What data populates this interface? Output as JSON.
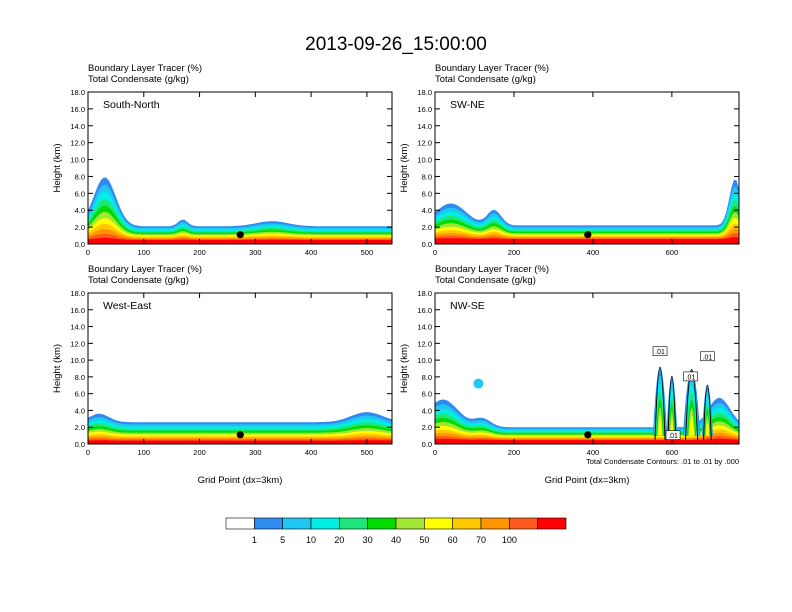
{
  "figure_title": "2013-09-26_15:00:00",
  "colorbar": {
    "labels": [
      "1",
      "5",
      "10",
      "20",
      "30",
      "40",
      "50",
      "60",
      "70",
      "100"
    ],
    "colors": [
      "#ffffff",
      "#2e8cf0",
      "#1ec8f0",
      "#00f0e6",
      "#1ee67a",
      "#00dc00",
      "#a0e632",
      "#ffff00",
      "#ffc800",
      "#ff9600",
      "#ff5a1e",
      "#ff0000"
    ]
  },
  "chart_data": [
    {
      "type": "contour",
      "header_line1": "Boundary Layer Tracer   (%)",
      "header_line2": "Total Condensate   (g/kg)",
      "panel_label": "South-North",
      "xlabel": "",
      "ylabel": "Height (km)",
      "xlim": [
        0,
        545
      ],
      "ylim": [
        0,
        18
      ],
      "xticks": [
        "0",
        "100",
        "200",
        "300",
        "400",
        "500"
      ],
      "yticks": [
        "0.0",
        "2.0",
        "4.0",
        "6.0",
        "8.0",
        "10.0",
        "12.0",
        "14.0",
        "16.0",
        "18.0"
      ],
      "marker": {
        "x": 273,
        "y": 1.1
      },
      "note": "",
      "contour_labels": []
    },
    {
      "type": "contour",
      "header_line1": "Boundary Layer Tracer   (%)",
      "header_line2": "Total Condensate   (g/kg)",
      "panel_label": "SW-NE",
      "xlabel": "",
      "ylabel": "Height (km)",
      "xlim": [
        0,
        770
      ],
      "ylim": [
        0,
        18
      ],
      "xticks": [
        "0",
        "200",
        "400",
        "600"
      ],
      "yticks": [
        "0.0",
        "2.0",
        "4.0",
        "6.0",
        "8.0",
        "10.0",
        "12.0",
        "14.0",
        "16.0",
        "18.0"
      ],
      "marker": {
        "x": 387,
        "y": 1.1
      },
      "note": "",
      "contour_labels": []
    },
    {
      "type": "contour",
      "header_line1": "Boundary Layer Tracer   (%)",
      "header_line2": "Total Condensate   (g/kg)",
      "panel_label": "West-East",
      "xlabel": "Grid Point (dx=3km)",
      "ylabel": "Height (km)",
      "xlim": [
        0,
        545
      ],
      "ylim": [
        0,
        18
      ],
      "xticks": [
        "0",
        "100",
        "200",
        "300",
        "400",
        "500"
      ],
      "yticks": [
        "0.0",
        "2.0",
        "4.0",
        "6.0",
        "8.0",
        "10.0",
        "12.0",
        "14.0",
        "16.0",
        "18.0"
      ],
      "marker": {
        "x": 273,
        "y": 1.1
      },
      "note": "",
      "contour_labels": []
    },
    {
      "type": "contour",
      "header_line1": "Boundary Layer Tracer   (%)",
      "header_line2": "Total Condensate   (g/kg)",
      "panel_label": "NW-SE",
      "xlabel": "Grid Point (dx=3km)",
      "ylabel": "Height (km)",
      "xlim": [
        0,
        770
      ],
      "ylim": [
        0,
        18
      ],
      "xticks": [
        "0",
        "200",
        "400",
        "600"
      ],
      "yticks": [
        "0.0",
        "2.0",
        "4.0",
        "6.0",
        "8.0",
        "10.0",
        "12.0",
        "14.0",
        "16.0",
        "18.0"
      ],
      "marker": {
        "x": 387,
        "y": 1.1
      },
      "note": "Total Condensate Contours: .01 to .01 by .000",
      "contour_labels": [
        {
          "text": ".01",
          "x": 570,
          "y": 11.0
        },
        {
          "text": ".01",
          "x": 690,
          "y": 10.4
        },
        {
          "text": ".01",
          "x": 647,
          "y": 8.0
        },
        {
          "text": ".01",
          "x": 603,
          "y": 1.0
        }
      ]
    }
  ]
}
